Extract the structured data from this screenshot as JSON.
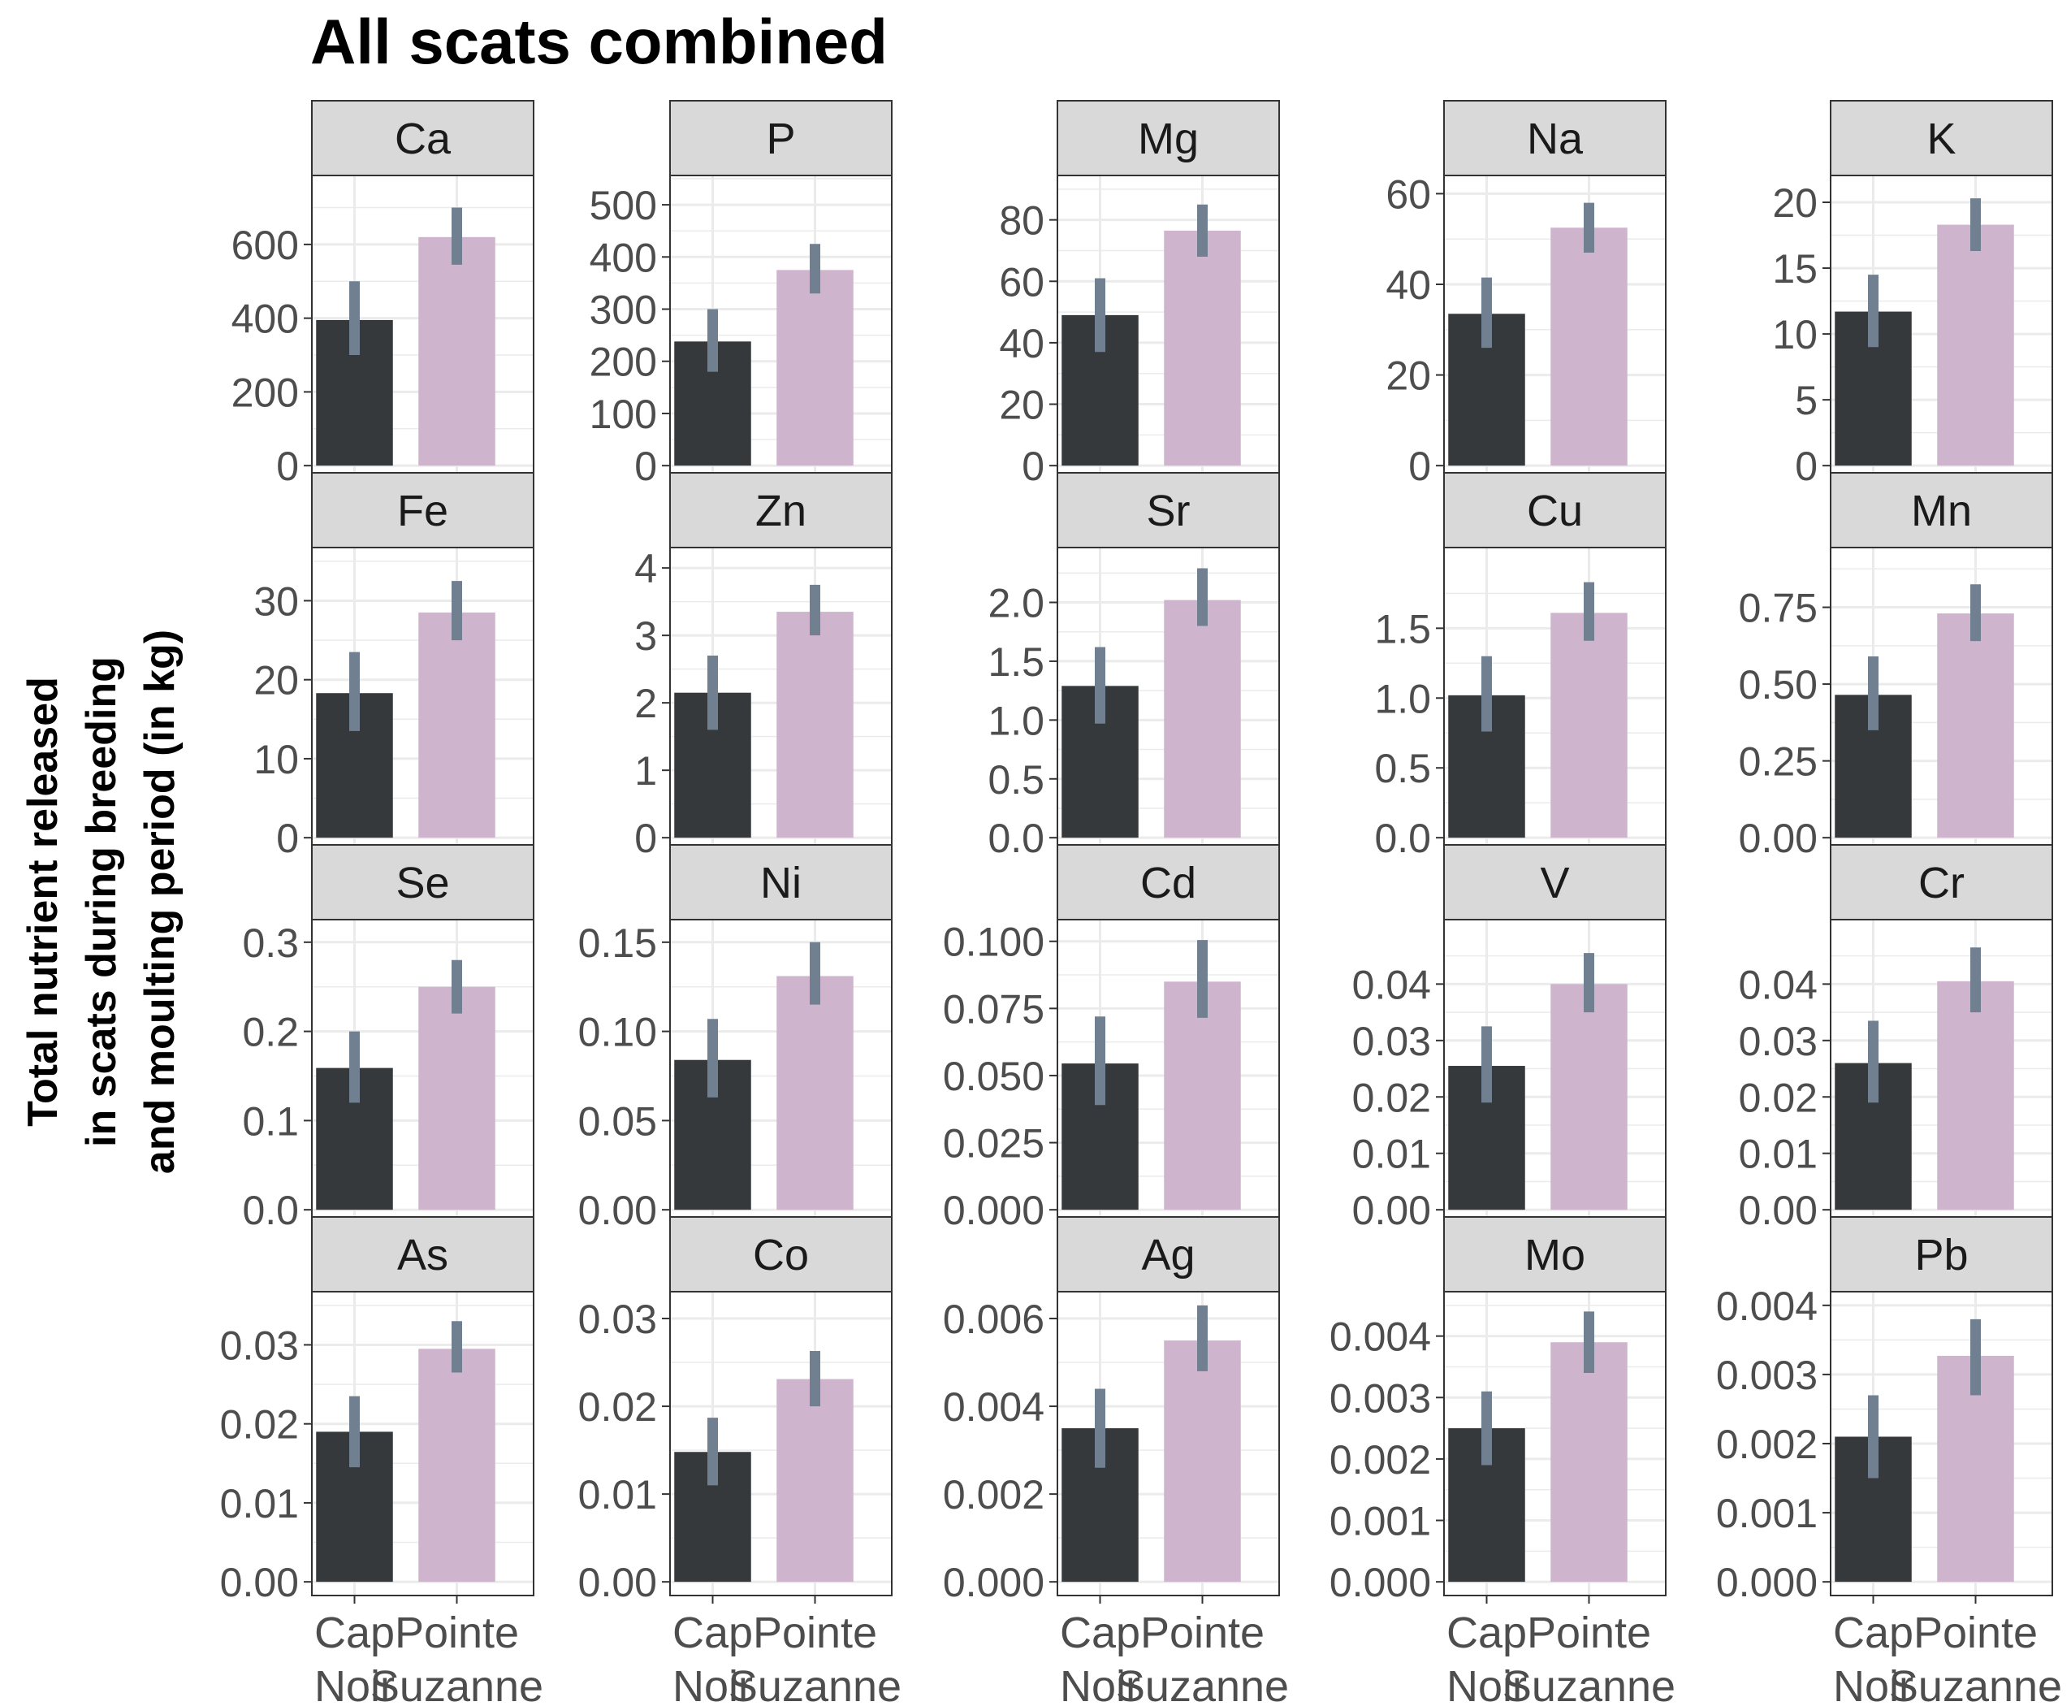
{
  "title": "All scats combined",
  "ylabel": [
    "Total nutrient released",
    "in scats during breeding",
    "and moulting period (in kg)"
  ],
  "x_tick_labels": [
    {
      "line1": "Cap",
      "line2": "Noir"
    },
    {
      "line1": "Pointe",
      "line2": "Suzanne"
    }
  ],
  "colors": {
    "cap_noir": "#35393b",
    "pointe_suzanne": "#cfb4cd",
    "error_bar": "#708090",
    "strip_fill": "#d9d9d9",
    "grid": "#ebebeb",
    "axis_text": "#4d4d4d"
  },
  "chart_data": {
    "type": "bar",
    "facet_layout": {
      "rows": 4,
      "cols": 5
    },
    "categories": [
      "Cap Noir",
      "Pointe Suzanne"
    ],
    "grid": true,
    "panels": [
      {
        "name": "Ca",
        "values": [
          395,
          620
        ],
        "err_low": [
          300,
          545
        ],
        "err_high": [
          500,
          700
        ],
        "ylim": [
          0,
          750
        ],
        "ticks": [
          0,
          200,
          400,
          600
        ],
        "tick_labels": [
          "0",
          "200",
          "400",
          "600"
        ]
      },
      {
        "name": "P",
        "values": [
          238,
          375
        ],
        "err_low": [
          180,
          330
        ],
        "err_high": [
          300,
          425
        ],
        "ylim": [
          0,
          530
        ],
        "ticks": [
          0,
          100,
          200,
          300,
          400,
          500
        ],
        "tick_labels": [
          "0",
          "100",
          "200",
          "300",
          "400",
          "500"
        ]
      },
      {
        "name": "Mg",
        "values": [
          49,
          76.5
        ],
        "err_low": [
          37,
          68
        ],
        "err_high": [
          61,
          85
        ],
        "ylim": [
          0,
          90
        ],
        "ticks": [
          0,
          20,
          40,
          60,
          80
        ],
        "tick_labels": [
          "0",
          "20",
          "40",
          "60",
          "80"
        ]
      },
      {
        "name": "Na",
        "values": [
          33.5,
          52.5
        ],
        "err_low": [
          26,
          47
        ],
        "err_high": [
          41.5,
          58
        ],
        "ylim": [
          0,
          61
        ],
        "ticks": [
          0,
          20,
          40,
          60
        ],
        "tick_labels": [
          "0",
          "20",
          "40",
          "60"
        ]
      },
      {
        "name": "K",
        "values": [
          11.7,
          18.3
        ],
        "err_low": [
          9,
          16.3
        ],
        "err_high": [
          14.5,
          20.3
        ],
        "ylim": [
          0,
          21
        ],
        "ticks": [
          0,
          5,
          10,
          15,
          20
        ],
        "tick_labels": [
          "0",
          "5",
          "10",
          "15",
          "20"
        ]
      },
      {
        "name": "Fe",
        "values": [
          18.3,
          28.5
        ],
        "err_low": [
          13.5,
          25
        ],
        "err_high": [
          23.5,
          32.5
        ],
        "ylim": [
          0,
          35
        ],
        "ticks": [
          0,
          10,
          20,
          30
        ],
        "tick_labels": [
          "0",
          "10",
          "20",
          "30"
        ]
      },
      {
        "name": "Zn",
        "values": [
          2.15,
          3.35
        ],
        "err_low": [
          1.6,
          3.0
        ],
        "err_high": [
          2.7,
          3.75
        ],
        "ylim": [
          0,
          4.1
        ],
        "ticks": [
          0,
          1,
          2,
          3,
          4
        ],
        "tick_labels": [
          "0",
          "1",
          "2",
          "3",
          "4"
        ]
      },
      {
        "name": "Sr",
        "values": [
          1.29,
          2.02
        ],
        "err_low": [
          0.97,
          1.8
        ],
        "err_high": [
          1.62,
          2.29
        ],
        "ylim": [
          0,
          2.35
        ],
        "ticks": [
          0,
          0.5,
          1.0,
          1.5,
          2.0
        ],
        "tick_labels": [
          "0.0",
          "0.5",
          "1.0",
          "1.5",
          "2.0"
        ]
      },
      {
        "name": "Cu",
        "values": [
          1.02,
          1.61
        ],
        "err_low": [
          0.76,
          1.41
        ],
        "err_high": [
          1.3,
          1.83
        ],
        "ylim": [
          0,
          1.98
        ],
        "ticks": [
          0,
          0.5,
          1.0,
          1.5
        ],
        "tick_labels": [
          "0.0",
          "0.5",
          "1.0",
          "1.5"
        ]
      },
      {
        "name": "Mn",
        "values": [
          0.465,
          0.73
        ],
        "err_low": [
          0.35,
          0.64
        ],
        "err_high": [
          0.59,
          0.825
        ],
        "ylim": [
          0,
          0.9
        ],
        "ticks": [
          0,
          0.25,
          0.5,
          0.75
        ],
        "tick_labels": [
          "0.00",
          "0.25",
          "0.50",
          "0.75"
        ]
      },
      {
        "name": "Se",
        "values": [
          0.159,
          0.25
        ],
        "err_low": [
          0.12,
          0.22
        ],
        "err_high": [
          0.2,
          0.28
        ],
        "ylim": [
          0,
          0.31
        ],
        "ticks": [
          0,
          0.1,
          0.2,
          0.3
        ],
        "tick_labels": [
          "0.0",
          "0.1",
          "0.2",
          "0.3"
        ]
      },
      {
        "name": "Ni",
        "values": [
          0.084,
          0.131
        ],
        "err_low": [
          0.063,
          0.115
        ],
        "err_high": [
          0.107,
          0.15
        ],
        "ylim": [
          0,
          0.155
        ],
        "ticks": [
          0,
          0.05,
          0.1,
          0.15
        ],
        "tick_labels": [
          "0.00",
          "0.05",
          "0.10",
          "0.15"
        ]
      },
      {
        "name": "Cd",
        "values": [
          0.0545,
          0.085
        ],
        "err_low": [
          0.039,
          0.0715
        ],
        "err_high": [
          0.072,
          0.1005
        ],
        "ylim": [
          0,
          0.103
        ],
        "ticks": [
          0,
          0.025,
          0.05,
          0.075,
          0.1
        ],
        "tick_labels": [
          "0.000",
          "0.025",
          "0.050",
          "0.075",
          "0.100"
        ]
      },
      {
        "name": "V",
        "values": [
          0.0255,
          0.04
        ],
        "err_low": [
          0.019,
          0.035
        ],
        "err_high": [
          0.0325,
          0.0455
        ],
        "ylim": [
          0,
          0.049
        ],
        "ticks": [
          0,
          0.01,
          0.02,
          0.03,
          0.04
        ],
        "tick_labels": [
          "0.00",
          "0.01",
          "0.02",
          "0.03",
          "0.04"
        ]
      },
      {
        "name": "Cr",
        "values": [
          0.026,
          0.0405
        ],
        "err_low": [
          0.019,
          0.035
        ],
        "err_high": [
          0.0335,
          0.0465
        ],
        "ylim": [
          0,
          0.049
        ],
        "ticks": [
          0,
          0.01,
          0.02,
          0.03,
          0.04
        ],
        "tick_labels": [
          "0.00",
          "0.01",
          "0.02",
          "0.03",
          "0.04"
        ]
      },
      {
        "name": "As",
        "values": [
          0.019,
          0.0295
        ],
        "err_low": [
          0.0145,
          0.0265
        ],
        "err_high": [
          0.0235,
          0.033
        ],
        "ylim": [
          0,
          0.035
        ],
        "ticks": [
          0,
          0.01,
          0.02,
          0.03
        ],
        "tick_labels": [
          "0.00",
          "0.01",
          "0.02",
          "0.03"
        ]
      },
      {
        "name": "Co",
        "values": [
          0.0148,
          0.0231
        ],
        "err_low": [
          0.011,
          0.02
        ],
        "err_high": [
          0.0187,
          0.0263
        ],
        "ylim": [
          0,
          0.0315
        ],
        "ticks": [
          0,
          0.01,
          0.02,
          0.03
        ],
        "tick_labels": [
          "0.00",
          "0.01",
          "0.02",
          "0.03"
        ]
      },
      {
        "name": "Ag",
        "values": [
          0.0035,
          0.0055
        ],
        "err_low": [
          0.0026,
          0.0048
        ],
        "err_high": [
          0.0044,
          0.0063
        ],
        "ylim": [
          0,
          0.0063
        ],
        "ticks": [
          0,
          0.002,
          0.004,
          0.006
        ],
        "tick_labels": [
          "0.000",
          "0.002",
          "0.004",
          "0.006"
        ]
      },
      {
        "name": "Mo",
        "values": [
          0.0025,
          0.0039
        ],
        "err_low": [
          0.0019,
          0.0034
        ],
        "err_high": [
          0.0031,
          0.0044
        ],
        "ylim": [
          0,
          0.0045
        ],
        "ticks": [
          0,
          0.001,
          0.002,
          0.003,
          0.004
        ],
        "tick_labels": [
          "0.000",
          "0.001",
          "0.002",
          "0.003",
          "0.004"
        ]
      },
      {
        "name": "Pb",
        "values": [
          0.0021,
          0.00327
        ],
        "err_low": [
          0.0015,
          0.0027
        ],
        "err_high": [
          0.0027,
          0.0038
        ],
        "ylim": [
          0,
          0.004
        ],
        "ticks": [
          0,
          0.001,
          0.002,
          0.003,
          0.004
        ],
        "tick_labels": [
          "0.000",
          "0.001",
          "0.002",
          "0.003",
          "0.004"
        ]
      }
    ]
  }
}
